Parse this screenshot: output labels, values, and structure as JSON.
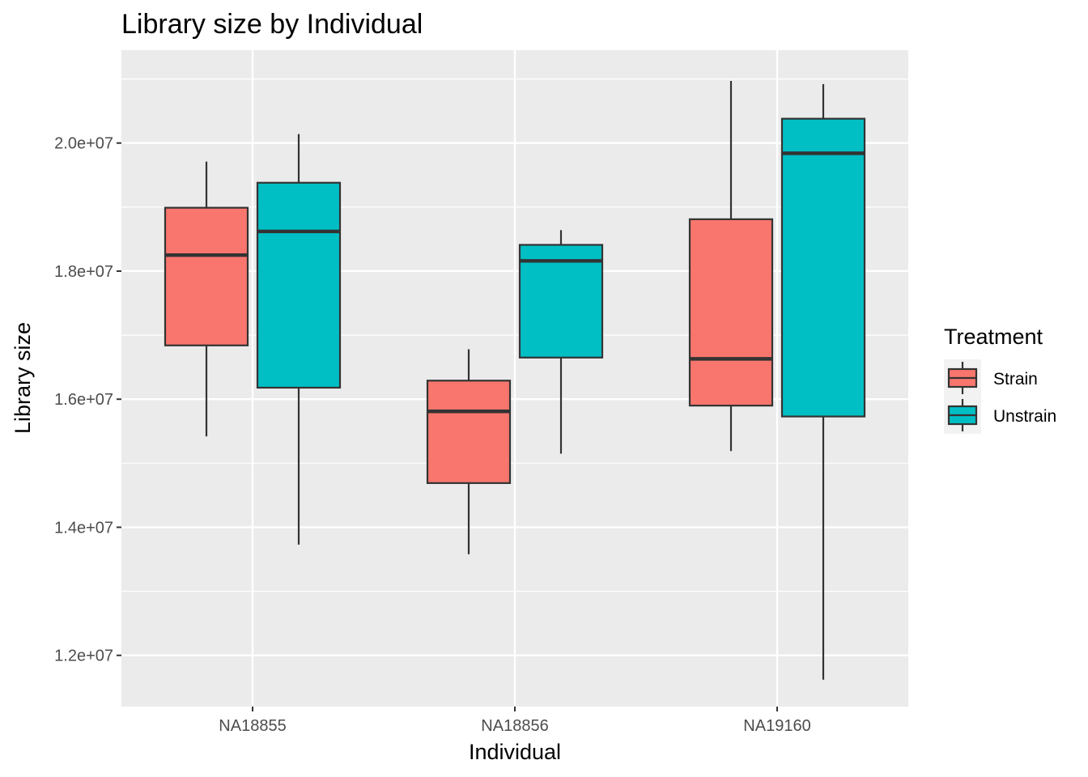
{
  "chart_data": {
    "type": "boxplot",
    "title": "Library size by Individual",
    "xlabel": "Individual",
    "ylabel": "Library size",
    "categories": [
      "NA18855",
      "NA18856",
      "NA19160"
    ],
    "ylim": [
      11200000,
      21450000
    ],
    "yticks": [
      {
        "value": 12000000,
        "label": "1.2e+07"
      },
      {
        "value": 14000000,
        "label": "1.4e+07"
      },
      {
        "value": 16000000,
        "label": "1.6e+07"
      },
      {
        "value": 18000000,
        "label": "1.8e+07"
      },
      {
        "value": 20000000,
        "label": "2.0e+07"
      }
    ],
    "grid": true,
    "legend": {
      "title": "Treatment",
      "position": "right"
    },
    "series": [
      {
        "name": "Strain",
        "color": "#F8766D",
        "boxes": [
          {
            "category": "NA18855",
            "min": 15420000,
            "q1": 16840000,
            "median": 18250000,
            "q3": 18990000,
            "max": 19710000
          },
          {
            "category": "NA18856",
            "min": 13580000,
            "q1": 14690000,
            "median": 15810000,
            "q3": 16290000,
            "max": 16780000
          },
          {
            "category": "NA19160",
            "min": 15190000,
            "q1": 15900000,
            "median": 16630000,
            "q3": 18810000,
            "max": 20970000
          }
        ]
      },
      {
        "name": "Unstrain",
        "color": "#00BFC4",
        "boxes": [
          {
            "category": "NA18855",
            "min": 13730000,
            "q1": 16180000,
            "median": 18620000,
            "q3": 19380000,
            "max": 20140000
          },
          {
            "category": "NA18856",
            "min": 15150000,
            "q1": 16650000,
            "median": 18160000,
            "q3": 18410000,
            "max": 18640000
          },
          {
            "category": "NA19160",
            "min": 11620000,
            "q1": 15730000,
            "median": 19840000,
            "q3": 20380000,
            "max": 20920000
          }
        ]
      }
    ]
  }
}
